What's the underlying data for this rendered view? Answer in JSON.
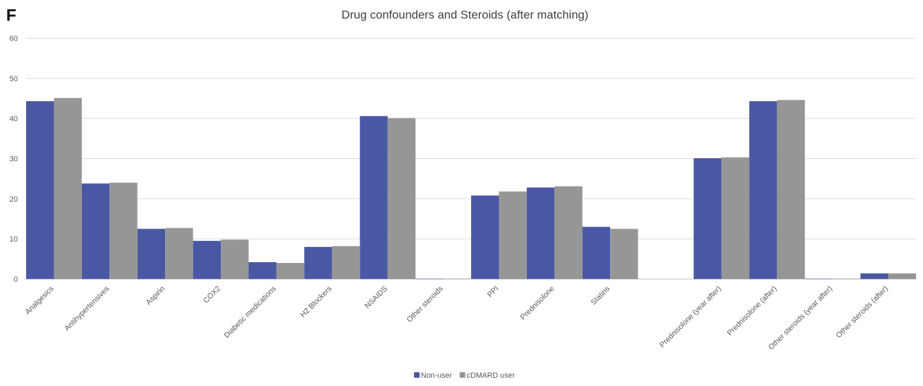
{
  "panel_letter": "F",
  "chart_data": {
    "type": "bar",
    "title": "Drug confounders and Steroids (after matching)",
    "xlabel": "",
    "ylabel": "",
    "ylim": [
      0,
      60
    ],
    "yticks": [
      0,
      10,
      20,
      30,
      40,
      50,
      60
    ],
    "grid": true,
    "legend_position": "bottom-center",
    "categories": [
      "Analgesics",
      "Antihypertensives",
      "Aspirin",
      "COX2",
      "Diabetic medications",
      "H2 Blockers",
      "NSAIDS",
      "Other steroids",
      "PPI",
      "Prednisolone",
      "Statins",
      "",
      "Prednisolone (year after)",
      "Prednisolone (after)",
      "Other steroids (year after)",
      "Other steroids (after)"
    ],
    "series": [
      {
        "name": "Non-user",
        "color": "#4a58a4",
        "values": [
          44.3,
          23.8,
          12.5,
          9.5,
          4.2,
          8.0,
          40.6,
          0.1,
          20.8,
          22.8,
          13.0,
          null,
          30.1,
          44.3,
          0.1,
          1.4
        ]
      },
      {
        "name": "cDMARD user",
        "color": "#969696",
        "values": [
          45.1,
          24.0,
          12.7,
          9.8,
          4.0,
          8.2,
          40.1,
          0.1,
          21.8,
          23.1,
          12.5,
          null,
          30.3,
          44.6,
          0.1,
          1.4
        ]
      }
    ]
  }
}
